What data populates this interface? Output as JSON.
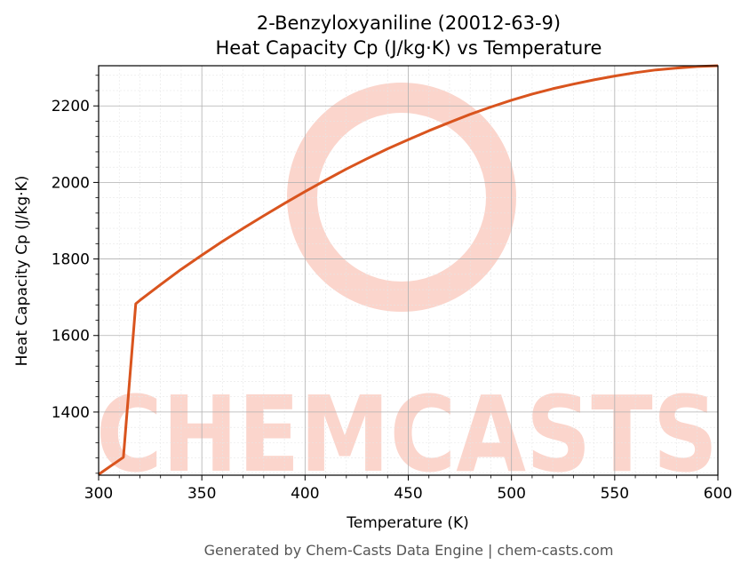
{
  "chart_data": {
    "type": "line",
    "title": "2-Benzyloxyaniline (20012-63-9)",
    "subtitle": "Heat Capacity Cp (J/kg·K) vs Temperature",
    "xlabel": "Temperature (K)",
    "ylabel": "Heat Capacity Cp (J/kg·K)",
    "xlim": [
      300,
      600
    ],
    "ylim": [
      1235,
      2305
    ],
    "xticks": [
      300,
      350,
      400,
      450,
      500,
      550,
      600
    ],
    "yticks": [
      1400,
      1600,
      1800,
      2000,
      2200
    ],
    "grid": true,
    "series": [
      {
        "color": "#d9541e",
        "x": [
          300,
          312,
          318,
          320,
          330,
          340,
          350,
          360,
          370,
          380,
          390,
          400,
          410,
          420,
          430,
          440,
          450,
          460,
          470,
          480,
          490,
          500,
          510,
          520,
          530,
          540,
          550,
          560,
          570,
          580,
          590,
          600
        ],
        "y": [
          1237,
          1282,
          1683,
          1692,
          1733,
          1773,
          1810,
          1846,
          1880,
          1913,
          1945,
          1976,
          2006,
          2035,
          2062,
          2088,
          2112,
          2135,
          2157,
          2178,
          2197,
          2215,
          2231,
          2245,
          2257,
          2268,
          2278,
          2287,
          2294,
          2299,
          2303,
          2305
        ]
      }
    ]
  },
  "watermark": {
    "text": "CHEMCASTS",
    "color": "#fbd5cc"
  },
  "footer": "Generated by Chem-Casts Data Engine | chem-casts.com"
}
